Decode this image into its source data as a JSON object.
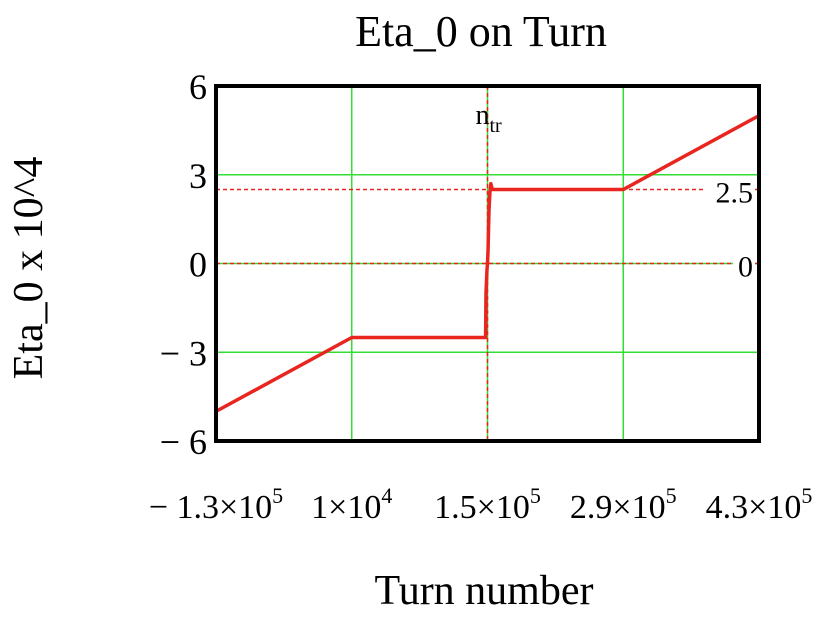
{
  "chart_data": {
    "type": "line",
    "title": "Eta_0 on Turn",
    "xlabel": "Turn number",
    "ylabel": "Eta_0 x 10^4",
    "xlim": [
      -130000,
      430000
    ],
    "ylim": [
      -6,
      6
    ],
    "grid": true,
    "x_ticks": [
      {
        "value": -130000,
        "mant": "− 1.3×10",
        "exp": "5"
      },
      {
        "value": 10000,
        "mant": "1×10",
        "exp": "4"
      },
      {
        "value": 150000,
        "mant": "1.5×10",
        "exp": "5"
      },
      {
        "value": 290000,
        "mant": "2.9×10",
        "exp": "5"
      },
      {
        "value": 430000,
        "mant": "4.3×10",
        "exp": "5"
      }
    ],
    "y_ticks": [
      {
        "value": 6,
        "label": "6"
      },
      {
        "value": 3,
        "label": "3"
      },
      {
        "value": 0,
        "label": "0"
      },
      {
        "value": -3,
        "label": "− 3"
      },
      {
        "value": -6,
        "label": "− 6"
      }
    ],
    "markers": {
      "vertical": {
        "value": 150000,
        "label_main": "n",
        "label_sub": "tr"
      },
      "horizontal": [
        {
          "value": 2.5,
          "label": "2.5"
        },
        {
          "value": 0,
          "label": "0"
        }
      ]
    },
    "series": [
      {
        "color": "#e8251f",
        "x": [
          -130000,
          10000,
          148000,
          148500,
          149500,
          150000,
          150500,
          151500,
          152500,
          153500,
          154500,
          155000,
          290000,
          430000
        ],
        "y": [
          -5.0,
          -2.5,
          -2.5,
          -1.0,
          -0.2,
          0.0,
          0.4,
          1.8,
          2.4,
          2.7,
          2.55,
          2.5,
          2.5,
          5.0
        ]
      }
    ],
    "colors": {
      "grid": "#33dd33",
      "marker": "#e8251f",
      "frame": "#000000"
    }
  }
}
